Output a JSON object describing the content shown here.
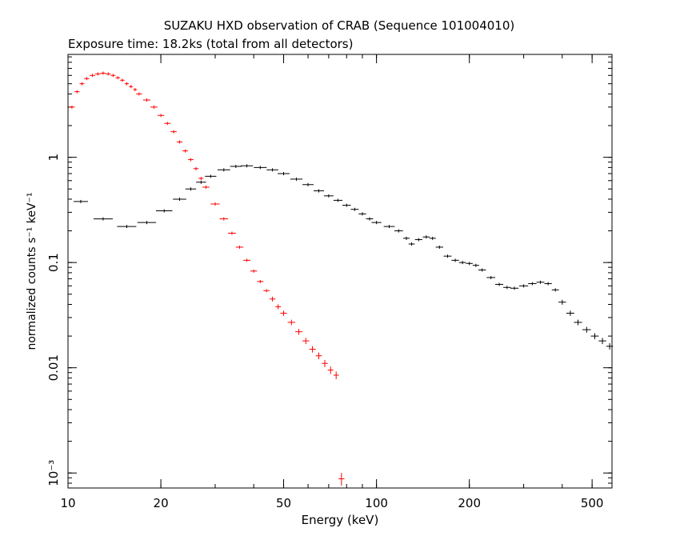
{
  "chart_data": {
    "type": "scatter",
    "title": "SUZAKU HXD observation of CRAB (Sequence 101004010)",
    "subtitle": "Exposure time: 18.2ks (total from all detectors)",
    "xlabel": "Energy (keV)",
    "ylabel": "normalized counts s⁻¹ keV⁻¹",
    "x_scale": "log",
    "y_scale": "log",
    "xlim": [
      10,
      580
    ],
    "ylim": [
      0.00072,
      9.5
    ],
    "x_ticks": [
      {
        "value": 10,
        "label": "10"
      },
      {
        "value": 20,
        "label": "20"
      },
      {
        "value": 50,
        "label": "50"
      },
      {
        "value": 100,
        "label": "100"
      },
      {
        "value": 200,
        "label": "200"
      },
      {
        "value": 500,
        "label": "500"
      }
    ],
    "y_ticks": [
      {
        "value": 0.001,
        "label": "10⁻³"
      },
      {
        "value": 0.01,
        "label": "0.01"
      },
      {
        "value": 0.1,
        "label": "0.1"
      },
      {
        "value": 1,
        "label": "1"
      }
    ],
    "series": [
      {
        "color": "#ff0000",
        "points": [
          [
            10.3,
            3.0
          ],
          [
            10.7,
            4.2
          ],
          [
            11.1,
            5.0
          ],
          [
            11.5,
            5.6
          ],
          [
            12.0,
            6.0
          ],
          [
            12.5,
            6.2
          ],
          [
            13.0,
            6.3
          ],
          [
            13.5,
            6.2
          ],
          [
            14.0,
            6.0
          ],
          [
            14.5,
            5.7
          ],
          [
            15.0,
            5.4
          ],
          [
            15.5,
            5.0
          ],
          [
            16.0,
            4.7
          ],
          [
            16.5,
            4.4
          ],
          [
            17.0,
            4.0
          ],
          [
            18.0,
            3.5
          ],
          [
            19.0,
            3.0
          ],
          [
            20.0,
            2.5
          ],
          [
            21.0,
            2.1
          ],
          [
            22.0,
            1.75
          ],
          [
            23.0,
            1.4
          ],
          [
            24.0,
            1.15
          ],
          [
            25.0,
            0.95
          ],
          [
            26.0,
            0.78
          ],
          [
            27.0,
            0.63
          ],
          [
            28.0,
            0.52
          ],
          [
            30.0,
            0.36
          ],
          [
            32.0,
            0.26
          ],
          [
            34.0,
            0.19
          ],
          [
            36.0,
            0.14
          ],
          [
            38.0,
            0.105
          ],
          [
            40.0,
            0.083
          ],
          [
            42.0,
            0.066
          ],
          [
            44.0,
            0.054
          ],
          [
            46.0,
            0.045
          ],
          [
            48.0,
            0.038
          ],
          [
            50.0,
            0.033
          ],
          [
            53.0,
            0.027
          ],
          [
            56.0,
            0.022
          ],
          [
            59.0,
            0.018
          ],
          [
            62.0,
            0.015
          ],
          [
            65.0,
            0.013
          ],
          [
            68.0,
            0.011
          ],
          [
            71.0,
            0.0095
          ],
          [
            74.0,
            0.0085
          ],
          [
            77.0,
            0.00088
          ]
        ]
      },
      {
        "color": "#000000",
        "points": [
          [
            11.0,
            0.38
          ],
          [
            13.0,
            0.26
          ],
          [
            15.5,
            0.22
          ],
          [
            18.0,
            0.24
          ],
          [
            20.5,
            0.31
          ],
          [
            23.0,
            0.4
          ],
          [
            25.0,
            0.5
          ],
          [
            27.0,
            0.58
          ],
          [
            29.0,
            0.66
          ],
          [
            32.0,
            0.76
          ],
          [
            35.0,
            0.82
          ],
          [
            38.0,
            0.83
          ],
          [
            42.0,
            0.8
          ],
          [
            46.0,
            0.76
          ],
          [
            50.0,
            0.7
          ],
          [
            55.0,
            0.62
          ],
          [
            60.0,
            0.55
          ],
          [
            65.0,
            0.48
          ],
          [
            70.0,
            0.43
          ],
          [
            75.0,
            0.39
          ],
          [
            80.0,
            0.35
          ],
          [
            85.0,
            0.32
          ],
          [
            90.0,
            0.29
          ],
          [
            95.0,
            0.26
          ],
          [
            100.0,
            0.24
          ],
          [
            110.0,
            0.22
          ],
          [
            118.0,
            0.2
          ],
          [
            125.0,
            0.17
          ],
          [
            130.0,
            0.15
          ],
          [
            137.0,
            0.165
          ],
          [
            145.0,
            0.175
          ],
          [
            152.0,
            0.17
          ],
          [
            160.0,
            0.14
          ],
          [
            170.0,
            0.115
          ],
          [
            180.0,
            0.105
          ],
          [
            190.0,
            0.1
          ],
          [
            200.0,
            0.098
          ],
          [
            210.0,
            0.094
          ],
          [
            220.0,
            0.085
          ],
          [
            235.0,
            0.072
          ],
          [
            250.0,
            0.062
          ],
          [
            265.0,
            0.058
          ],
          [
            280.0,
            0.057
          ],
          [
            300.0,
            0.06
          ],
          [
            320.0,
            0.063
          ],
          [
            340.0,
            0.065
          ],
          [
            360.0,
            0.063
          ],
          [
            380.0,
            0.055
          ],
          [
            400.0,
            0.042
          ],
          [
            425.0,
            0.033
          ],
          [
            450.0,
            0.027
          ],
          [
            480.0,
            0.023
          ],
          [
            510.0,
            0.02
          ],
          [
            540.0,
            0.018
          ],
          [
            570.0,
            0.016
          ]
        ]
      }
    ]
  }
}
